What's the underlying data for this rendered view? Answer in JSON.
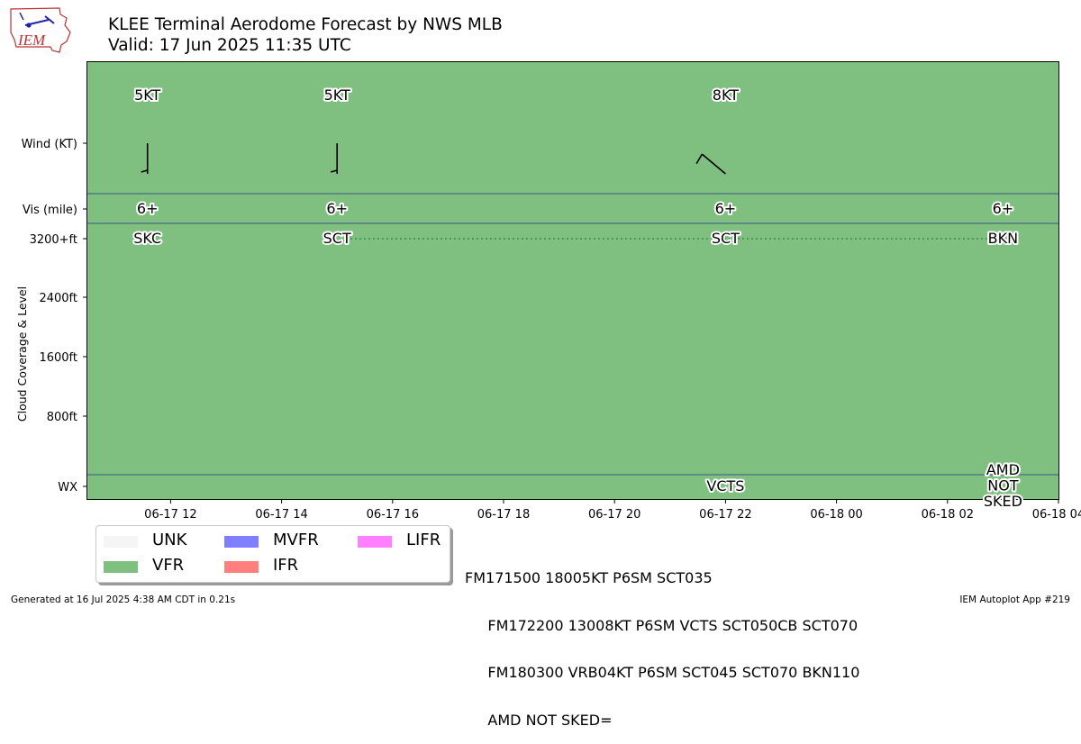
{
  "header": {
    "title_line1": "KLEE Terminal Aerodome Forecast by NWS MLB",
    "title_line2": "Valid: 17 Jun 2025 11:35 UTC",
    "logo_text": "IEM"
  },
  "chart_data": {
    "type": "timeline",
    "x_range": [
      "2025-06-17 10:30",
      "2025-06-18 04:00"
    ],
    "x_tick_labels": [
      "06-17 12",
      "06-17 14",
      "06-17 16",
      "06-17 18",
      "06-17 20",
      "06-17 22",
      "06-18 00",
      "06-18 02",
      "06-18 04"
    ],
    "x_tick_hours": [
      12,
      14,
      16,
      18,
      20,
      22,
      24,
      26,
      28
    ],
    "y_tick_labels": [
      "Wind (KT)",
      "Vis (mile)",
      "3200+ft",
      "2400ft",
      "1600ft",
      "800ft",
      "WX"
    ],
    "y_cloud_levels_ft": [
      3200,
      2400,
      1600,
      800
    ],
    "ylabel": "Cloud Coverage & Level",
    "background_category": "VFR",
    "forecasts": [
      {
        "time": "2025-06-17 11:35",
        "wind_label": "5KT",
        "wind_dir": 180,
        "wind_speed_kt": 5,
        "vis": "6+",
        "sky": "SKC",
        "wx": ""
      },
      {
        "time": "2025-06-17 15:00",
        "wind_label": "5KT",
        "wind_dir": 180,
        "wind_speed_kt": 5,
        "vis": "6+",
        "sky": "SCT",
        "wx": ""
      },
      {
        "time": "2025-06-17 22:00",
        "wind_label": "8KT",
        "wind_dir": 130,
        "wind_speed_kt": 8,
        "vis": "6+",
        "sky": "SCT",
        "wx": "VCTS"
      },
      {
        "time": "2025-06-18 03:00",
        "wind_label": "",
        "wind_dir": null,
        "wind_speed_kt": 4,
        "vis": "6+",
        "sky": "BKN",
        "wx": "AMD NOT SKED"
      }
    ],
    "cloud_line": {
      "from": "2025-06-17 15:00",
      "to": "2025-06-18 03:00",
      "level": "3200+ft",
      "style": "dotted",
      "color": "#2a7a3a"
    },
    "legend": {
      "placement": "bottom-left",
      "entries": [
        {
          "label": "UNK",
          "color": "#f5f5f5"
        },
        {
          "label": "VFR",
          "color": "#7fbf7f"
        },
        {
          "label": "MVFR",
          "color": "#7f7fff"
        },
        {
          "label": "IFR",
          "color": "#ff7f7f"
        },
        {
          "label": "LIFR",
          "color": "#ff7fff"
        }
      ]
    }
  },
  "taf_text": [
    "FM171500 18005KT P6SM SCT035",
    "     FM172200 13008KT P6SM VCTS SCT050CB SCT070",
    "     FM180300 VRB04KT P6SM SCT045 SCT070 BKN110",
    "     AMD NOT SKED="
  ],
  "footer": {
    "left": "Generated at 16 Jul 2025 4:38 AM CDT in 0.21s",
    "right": "IEM Autoplot App #219"
  }
}
